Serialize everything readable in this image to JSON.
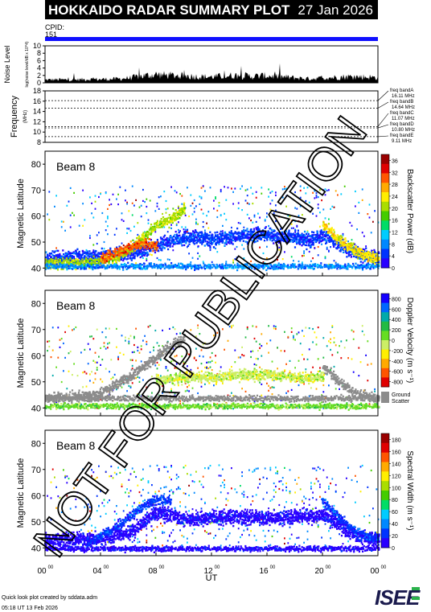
{
  "header": {
    "title": "HOKKAIDO RADAR SUMMARY PLOT",
    "date": "27 Jan 2026",
    "cpid_label": "CPID:",
    "cpid_value": "151",
    "bar_color": "#1010ff",
    "background": "#000000"
  },
  "footer": {
    "line1": "Quick look plot created by sddata.adm",
    "line2": "05:18 UT 13 Feb 2026",
    "logo_text": "ISEE",
    "watermark": "NOT FOR PUBLICATION"
  },
  "chart_data": [
    {
      "type": "area",
      "ylabel": "Noise Level",
      "yunits": "log(noise level/dB x 10^4)",
      "ylim": [
        0,
        10
      ],
      "yticks": [
        "0",
        "2",
        "4",
        "6",
        "8",
        "10"
      ],
      "x_hours": [
        0,
        1,
        2,
        3,
        4,
        5,
        6,
        7,
        8,
        9,
        10,
        11,
        12,
        13,
        14,
        15,
        16,
        17,
        18,
        19,
        20,
        21,
        22,
        23,
        24
      ],
      "values": [
        1.0,
        1.1,
        1.0,
        1.2,
        1.2,
        1.3,
        1.6,
        2.3,
        2.8,
        2.5,
        2.4,
        2.1,
        2.0,
        2.3,
        2.5,
        2.2,
        2.4,
        2.0,
        1.7,
        1.4,
        1.6,
        1.9,
        2.1,
        2.0,
        1.8
      ]
    },
    {
      "type": "line",
      "ylabel": "Frequency",
      "yunits": "(MHz)",
      "ylim": [
        8,
        18
      ],
      "yticks": [
        "8",
        "10",
        "12",
        "14",
        "16",
        "18"
      ],
      "bands": [
        {
          "label": "freq bandA",
          "value": "16.11 MHz",
          "mhz": 16.11
        },
        {
          "label": "freq bandB",
          "value": "14.64 MHz",
          "mhz": 14.64
        },
        {
          "label": "freq bandC",
          "value": "11.07 MHz",
          "mhz": 11.07
        },
        {
          "label": "freq bandD",
          "value": "10.80 MHz",
          "mhz": 10.8
        },
        {
          "label": "freq bandE",
          "value": "9.11 MHz",
          "mhz": 9.11
        }
      ]
    },
    {
      "type": "heatmap",
      "beam": "Beam  8",
      "ylabel": "Magnetic Latitude",
      "ylim": [
        37,
        85
      ],
      "yticks": [
        "40",
        "50",
        "60",
        "70",
        "80"
      ],
      "colorbar_label": "Backscatter Power (dB)",
      "colorbar_ticks": [
        "0",
        "4",
        "8",
        "12",
        "16",
        "20",
        "24",
        "28",
        "32",
        "36"
      ],
      "colorbar_range": [
        0,
        38
      ],
      "colors": [
        "#2a00ff",
        "#0033ff",
        "#0088ff",
        "#00ccff",
        "#00dd66",
        "#44cc00",
        "#aadd00",
        "#ffee00",
        "#ffaa00",
        "#ff5500",
        "#e00000",
        "#9a0000"
      ],
      "features": [
        {
          "kind": "echo_band",
          "hours": [
            0,
            2,
            4,
            6,
            7,
            8,
            9,
            10,
            11,
            12,
            14,
            16,
            18,
            19,
            20,
            21,
            22,
            23,
            24
          ],
          "lat": [
            44,
            44.5,
            45,
            46,
            47,
            49,
            51,
            52,
            52,
            51,
            53,
            53,
            52,
            51,
            53,
            50,
            47,
            45,
            44
          ],
          "width": 4,
          "level": 1
        },
        {
          "kind": "echo_band",
          "hours": [
            0,
            2,
            4,
            5,
            6,
            7,
            8,
            9,
            10
          ],
          "lat": [
            42,
            42,
            43,
            44,
            47,
            52,
            57,
            59,
            63
          ],
          "width": 3,
          "level": 6
        },
        {
          "kind": "echo_band",
          "hours": [
            4,
            5,
            6,
            7,
            8
          ],
          "lat": [
            44,
            46,
            48,
            50,
            49
          ],
          "width": 3,
          "level": 9
        },
        {
          "kind": "echo_band",
          "hours": [
            20,
            21,
            22,
            23,
            24
          ],
          "lat": [
            57,
            52,
            48,
            45,
            44
          ],
          "width": 3,
          "level": 7
        },
        {
          "kind": "echo_band",
          "hours": [
            0,
            24
          ],
          "lat": [
            41,
            41
          ],
          "width": 1.6,
          "level": 2
        }
      ]
    },
    {
      "type": "heatmap",
      "beam": "Beam  8",
      "ylabel": "Magnetic Latitude",
      "ylim": [
        37,
        85
      ],
      "yticks": [
        "40",
        "50",
        "60",
        "70",
        "80"
      ],
      "colorbar_label": "Doppler Velocity (m s⁻¹)",
      "colorbar_ticks": [
        "800",
        "600",
        "400",
        "200",
        "0",
        "-200",
        "-400",
        "-600",
        "-800"
      ],
      "colorbar_range": [
        -900,
        900
      ],
      "ground_scatter_label": "Ground Scatter",
      "ground_scatter_color": "#8c8c8c",
      "colors": [
        "#e00000",
        "#ff5500",
        "#ffaa00",
        "#ffee00",
        "#ccee66",
        "#66dd22",
        "#22bb44",
        "#00aaaa",
        "#0066ff",
        "#1500ff"
      ],
      "features": [
        {
          "kind": "ground_scatter",
          "hours": [
            0,
            2,
            4,
            5,
            6,
            7,
            8,
            9,
            10
          ],
          "lat": [
            44,
            44.5,
            46,
            49,
            52,
            56,
            60,
            64,
            67
          ],
          "width": 3
        },
        {
          "kind": "ground_scatter",
          "hours": [
            0,
            24
          ],
          "lat": [
            44,
            44
          ],
          "width": 1.6
        },
        {
          "kind": "ground_scatter",
          "hours": [
            20,
            21,
            22,
            23,
            24
          ],
          "lat": [
            56,
            51,
            47,
            45,
            44
          ],
          "width": 2.5
        },
        {
          "kind": "echo_band",
          "hours": [
            8,
            10,
            12,
            14,
            16,
            18,
            20
          ],
          "lat": [
            51,
            52,
            52,
            53,
            53,
            52,
            52
          ],
          "width": 3,
          "level": 4
        },
        {
          "kind": "echo_band",
          "hours": [
            0,
            24
          ],
          "lat": [
            41,
            41
          ],
          "width": 1.5,
          "level": 5
        }
      ]
    },
    {
      "type": "heatmap",
      "beam": "Beam  8",
      "ylabel": "Magnetic Latitude",
      "ylim": [
        37,
        85
      ],
      "yticks": [
        "40",
        "50",
        "60",
        "70",
        "80"
      ],
      "colorbar_label": "Spectral Width (m s⁻¹)",
      "colorbar_ticks": [
        "0",
        "20",
        "40",
        "60",
        "80",
        "100",
        "120",
        "140",
        "160",
        "180"
      ],
      "colorbar_range": [
        0,
        190
      ],
      "colors": [
        "#2a00ff",
        "#0033ff",
        "#0088ff",
        "#00ccff",
        "#00dd66",
        "#44cc00",
        "#aadd00",
        "#ffee00",
        "#ffaa00",
        "#ff5500",
        "#e00000",
        "#9a0000"
      ],
      "features": [
        {
          "kind": "echo_band",
          "hours": [
            0,
            2,
            4,
            6,
            7,
            8,
            9,
            10,
            12,
            14,
            16,
            18,
            20,
            21,
            22,
            23,
            24
          ],
          "lat": [
            43,
            43.5,
            44,
            46,
            50,
            54,
            53,
            51,
            52,
            52,
            52,
            52,
            53,
            50,
            46,
            44,
            43
          ],
          "width": 4,
          "level": 0
        },
        {
          "kind": "echo_band",
          "hours": [
            3,
            5,
            6,
            7,
            8,
            9
          ],
          "lat": [
            42,
            48,
            52,
            56,
            59,
            58
          ],
          "width": 2.5,
          "level": 1
        },
        {
          "kind": "echo_band",
          "hours": [
            20,
            21,
            22,
            23,
            24
          ],
          "lat": [
            58,
            53,
            48,
            45,
            44
          ],
          "width": 2.5,
          "level": 1
        },
        {
          "kind": "echo_band",
          "hours": [
            0,
            24
          ],
          "lat": [
            40,
            40
          ],
          "width": 1.5,
          "level": 0
        }
      ]
    }
  ],
  "x_axis": {
    "label": "UT",
    "range": [
      0,
      24
    ],
    "ticks": [
      {
        "hour": 0,
        "main": "00",
        "sup": "00"
      },
      {
        "hour": 4,
        "main": "04",
        "sup": "00"
      },
      {
        "hour": 8,
        "main": "08",
        "sup": "00"
      },
      {
        "hour": 12,
        "main": "12",
        "sup": "00"
      },
      {
        "hour": 16,
        "main": "16",
        "sup": "00"
      },
      {
        "hour": 20,
        "main": "20",
        "sup": "00"
      },
      {
        "hour": 24,
        "main": "00",
        "sup": "00"
      }
    ]
  }
}
